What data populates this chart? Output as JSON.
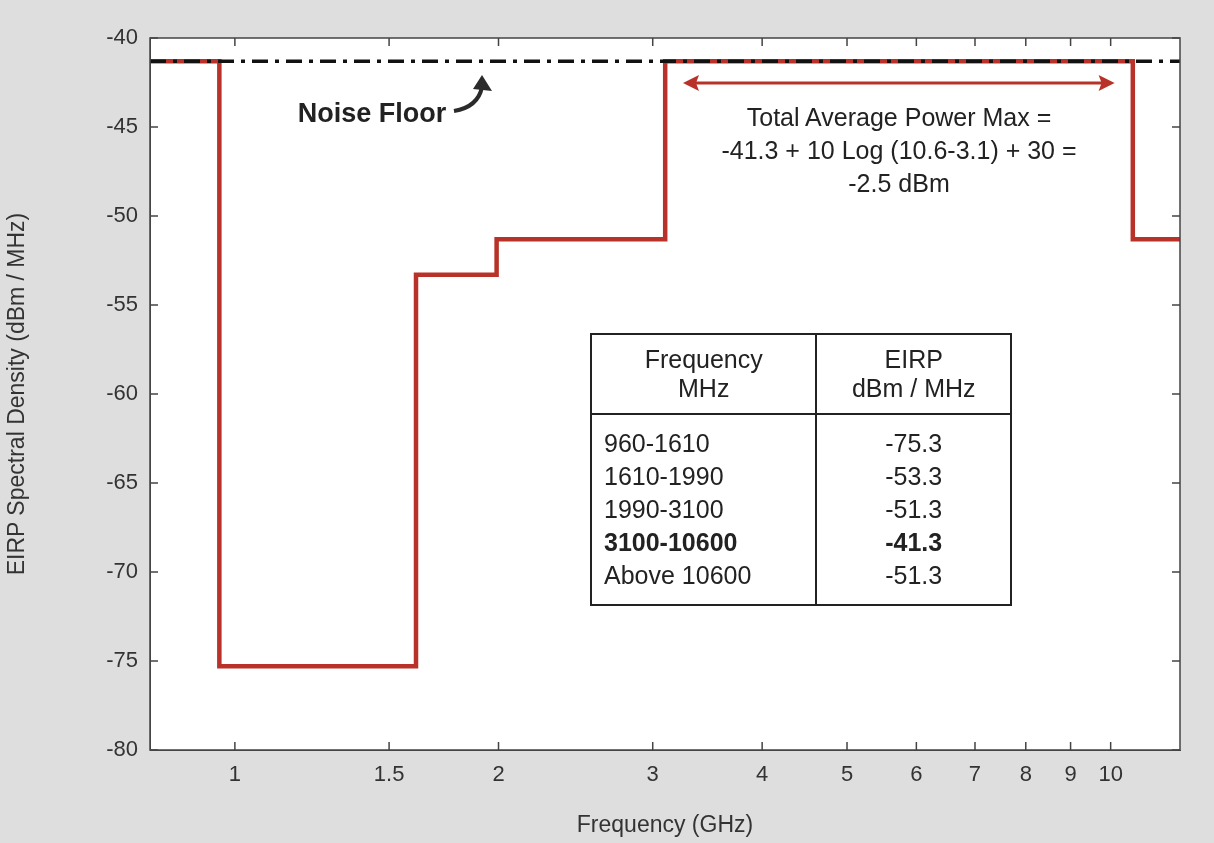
{
  "chart_data": {
    "type": "step",
    "xlabel": "Frequency (GHz)",
    "ylabel": "EIRP Spectral Density (dBm / MHz)",
    "x": [
      0.8,
      0.96,
      1.61,
      1.99,
      3.1,
      10.6,
      12
    ],
    "series": [
      {
        "color": "#b8322a",
        "values": [
          -41.3,
          -75.3,
          -53.3,
          -51.3,
          -41.3,
          -51.3,
          -51.3
        ]
      }
    ],
    "log": "x",
    "xlim": [
      0.8,
      12
    ],
    "xticks": [
      1,
      1.5,
      2,
      3,
      4,
      5,
      6,
      7,
      8,
      9,
      10
    ],
    "ylim": [
      -80,
      -40
    ],
    "yticks": [
      -80,
      -75,
      -70,
      -65,
      -60,
      -55,
      -50,
      -45,
      -40
    ],
    "grid": false,
    "legend": false,
    "marker": "none",
    "line_style": "solid",
    "ref_lines": [
      {
        "axis": "y",
        "value": -41.3,
        "label": "Noise Floor",
        "color": "#111111",
        "line_style": "dashed"
      }
    ],
    "annotations": [
      "Total Average Power Max =\n-41.3 + 10 Log (10.6-3.1) + 30 =\n-2.5 dBm",
      "Frequency\nMHz",
      "EIRP\ndBm / MHz",
      "960-1610",
      "-75.3",
      "1610-1990",
      "-53.3",
      "1990-3100",
      "-51.3",
      "3100-10600",
      "-41.3",
      "Above 10600",
      "-51.3"
    ]
  }
}
